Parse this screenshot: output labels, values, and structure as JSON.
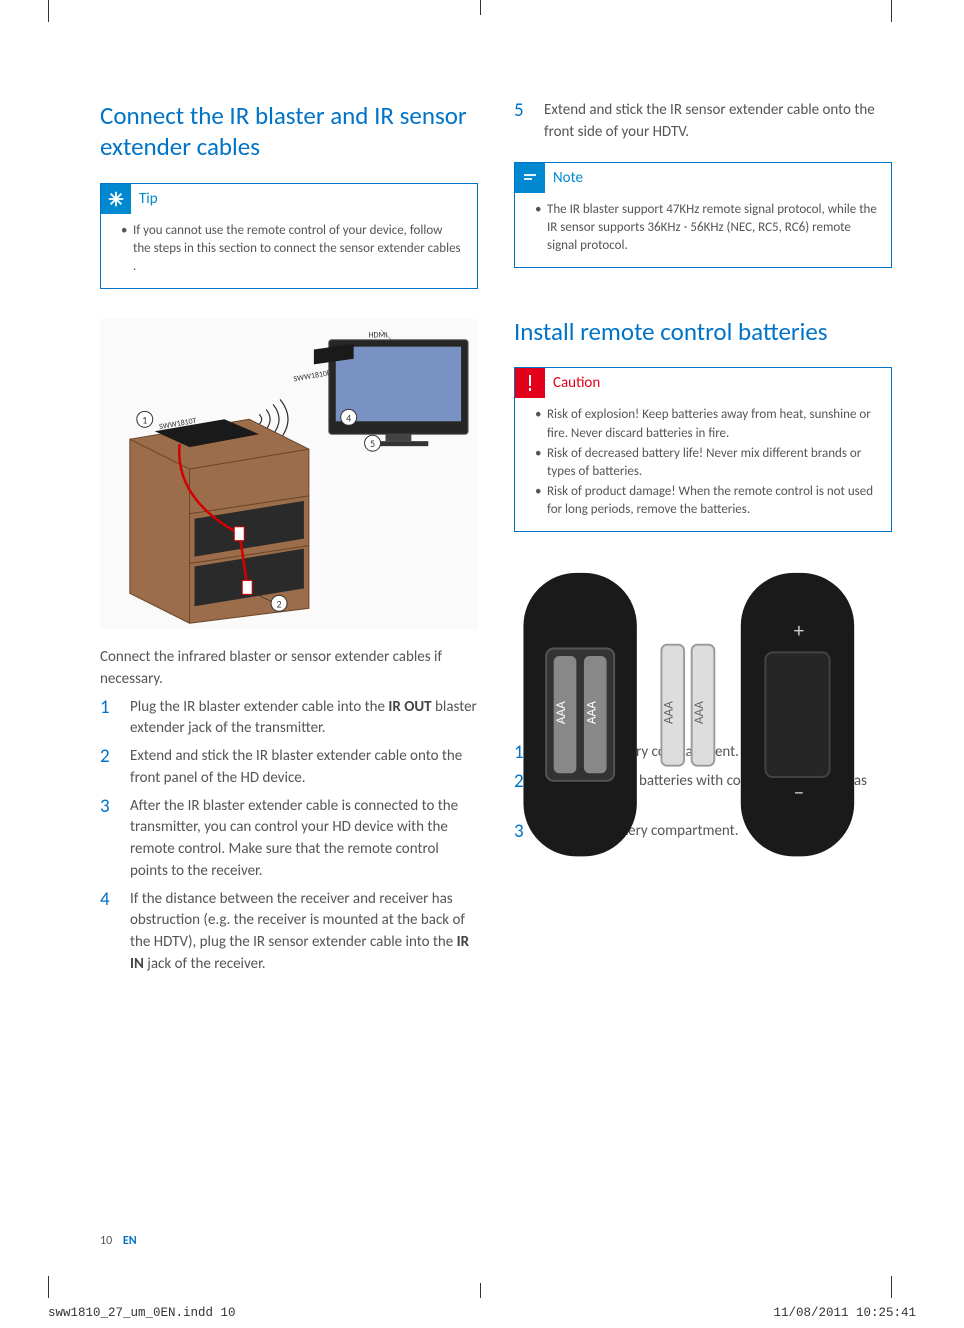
{
  "colors": {
    "heading": "#0073c8",
    "tip": "#0089d0",
    "note": "#0089d0",
    "caution": "#e2001a",
    "body_text": "#555555",
    "border": "#0073c8"
  },
  "left": {
    "heading": "Connect the IR blaster and IR sensor extender cables",
    "tip": {
      "label": "Tip",
      "items": [
        "If you cannot use the remote control of your device, follow the steps in this section to connect the sensor extender cables ."
      ]
    },
    "diagram_labels": {
      "l1": "SWW1810T",
      "l2": "SWW1810R",
      "l3": "HDMI"
    },
    "intro": "Connect the infrared blaster or sensor extender cables if necessary.",
    "steps": [
      {
        "n": "1",
        "text": "Plug the IR blaster extender cable into the <b>IR OUT</b> blaster extender jack of the transmitter."
      },
      {
        "n": "2",
        "text": "Extend and stick the IR blaster extender cable onto the front panel of the HD device."
      },
      {
        "n": "3",
        "text": "After the IR blaster extender cable is connected to the transmitter, you can control your HD device with the remote control. Make sure that the remote control points to the receiver."
      },
      {
        "n": "4",
        "text": "If the distance between the receiver and receiver has obstruction (e.g. the receiver is mounted at the back of the HDTV), plug the IR sensor extender cable into the <b>IR IN</b> jack of the receiver."
      }
    ]
  },
  "right": {
    "top_steps": [
      {
        "n": "5",
        "text": "Extend and stick the IR sensor extender cable onto the front side of your HDTV."
      }
    ],
    "note": {
      "label": "Note",
      "items": [
        "The IR blaster support 47KHz remote signal protocol, while the IR sensor supports 36KHz - 56KHz (NEC, RC5, RC6) remote signal protocol."
      ]
    },
    "heading": "Install remote control batteries",
    "caution": {
      "label": "Caution",
      "items": [
        "Risk of explosion! Keep batteries away from heat, sunshine or fire. Never discard batteries in fire.",
        "Risk of decreased battery life! Never mix different brands or types of batteries.",
        "Risk of product damage! When the remote control is not used for long periods, remove the batteries."
      ]
    },
    "battery_labels": {
      "a": "AAA",
      "b": "AAA"
    },
    "steps": [
      {
        "n": "1",
        "text": "Open the battery compartment."
      },
      {
        "n": "2",
        "text": "Insert two AAA batteries with correct polarity (+/-) as indicated."
      },
      {
        "n": "3",
        "text": "Close the battery compartment."
      }
    ]
  },
  "footer": {
    "page_num": "10",
    "lang": "EN",
    "file": "sww1810_27_um_0EN.indd   10",
    "timestamp": "11/08/2011   10:25:41"
  }
}
